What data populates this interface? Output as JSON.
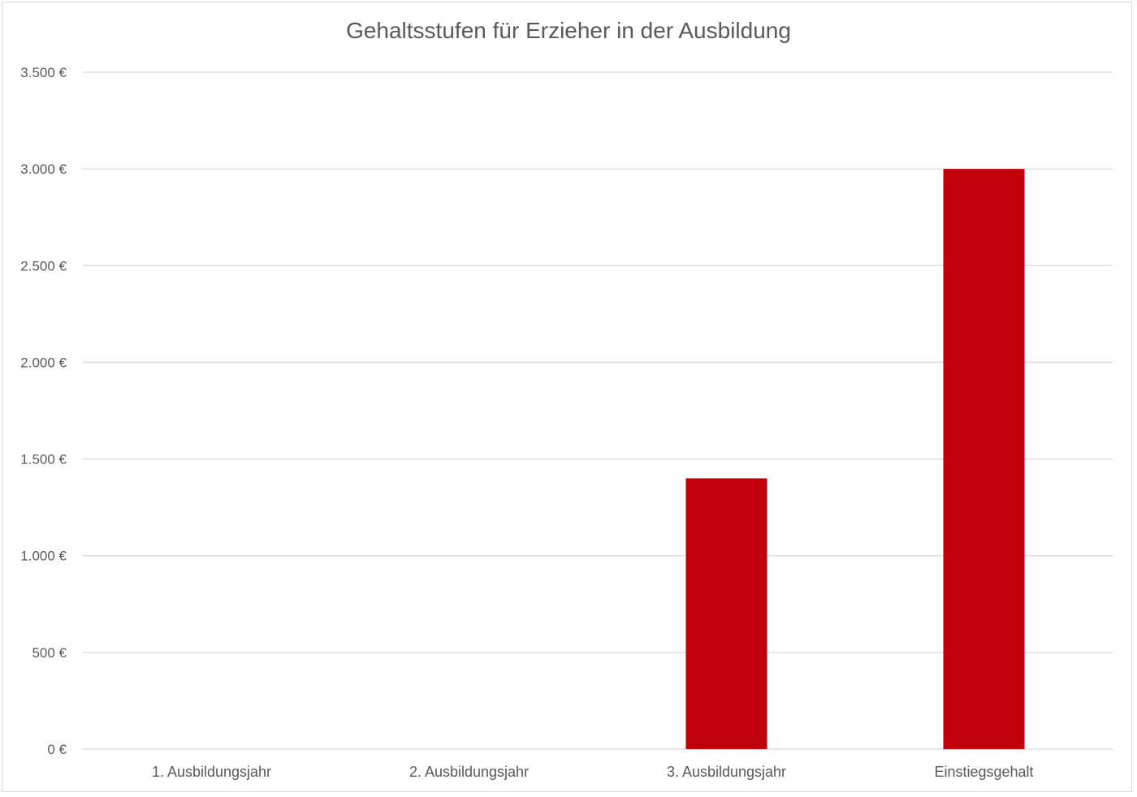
{
  "chart_data": {
    "type": "bar",
    "title": "Gehaltsstufen für Erzieher in der Ausbildung",
    "categories": [
      "1. Ausbildungsjahr",
      "2. Ausbildungsjahr",
      "3. Ausbildungsjahr",
      "Einstiegsgehalt"
    ],
    "values": [
      0,
      0,
      1400,
      3000
    ],
    "ylim": [
      0,
      3500
    ],
    "yticks": [
      0,
      500,
      1000,
      1500,
      2000,
      2500,
      3000,
      3500
    ],
    "ytick_labels": [
      "0 €",
      "500 €",
      "1.000 €",
      "1.500 €",
      "2.000 €",
      "2.500 €",
      "3.000 €",
      "3.500 €"
    ],
    "xlabel": "",
    "ylabel": "",
    "grid": true,
    "bar_color": "#C0000B",
    "grid_color": "#D9D9D9"
  }
}
